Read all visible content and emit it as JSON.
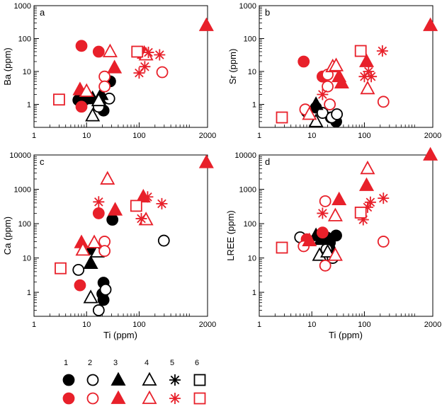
{
  "colors": {
    "black": "#000000",
    "red": "#e8202a"
  },
  "axes": {
    "x_ticks": [
      "1",
      "10",
      "100",
      "2000"
    ],
    "x_label": "Ti (ppm)"
  },
  "legend": {
    "numbers": [
      "1",
      "2",
      "3",
      "4",
      "5",
      "6"
    ],
    "entries": [
      {
        "n": "1",
        "shape": "circle",
        "fill": true
      },
      {
        "n": "2",
        "shape": "circle",
        "fill": false
      },
      {
        "n": "3",
        "shape": "triangle",
        "fill": true
      },
      {
        "n": "4",
        "shape": "triangle",
        "fill": false
      },
      {
        "n": "5",
        "shape": "star",
        "fill": false
      },
      {
        "n": "6",
        "shape": "square",
        "fill": false
      }
    ]
  },
  "chart_data": [
    {
      "panel": "a",
      "type": "scatter",
      "xscale": "log",
      "yscale": "log",
      "xlim": [
        1,
        2000
      ],
      "ylim": [
        0.2,
        1000
      ],
      "xlabel": "",
      "ylabel": "Ba (ppm)",
      "y_ticks": [
        "1",
        "10",
        "100",
        "1000"
      ],
      "points": [
        {
          "x": 7,
          "y": 1.35,
          "s": "circle",
          "f": 1,
          "c": "black"
        },
        {
          "x": 9,
          "y": 1.35,
          "s": "circle",
          "f": 1,
          "c": "black"
        },
        {
          "x": 18,
          "y": 1.0,
          "s": "circle",
          "f": 1,
          "c": "black"
        },
        {
          "x": 21,
          "y": 0.65,
          "s": "circle",
          "f": 1,
          "c": "black"
        },
        {
          "x": 28,
          "y": 5.0,
          "s": "circle",
          "f": 1,
          "c": "black"
        },
        {
          "x": 27,
          "y": 1.5,
          "s": "circle",
          "f": 0,
          "c": "black"
        },
        {
          "x": 17,
          "y": 0.85,
          "s": "circle",
          "f": 0,
          "c": "black"
        },
        {
          "x": 13,
          "y": 1.5,
          "s": "triangle",
          "f": 1,
          "c": "black"
        },
        {
          "x": 19,
          "y": 2.0,
          "s": "triangle",
          "f": 1,
          "c": "black"
        },
        {
          "x": 13,
          "y": 0.45,
          "s": "triangle",
          "f": 0,
          "c": "black"
        },
        {
          "x": 17,
          "y": 1.3,
          "s": "triangle",
          "f": 0,
          "c": "black"
        },
        {
          "x": 8,
          "y": 60,
          "s": "circle",
          "f": 1,
          "c": "red"
        },
        {
          "x": 17,
          "y": 40,
          "s": "circle",
          "f": 1,
          "c": "red"
        },
        {
          "x": 8,
          "y": 0.85,
          "s": "circle",
          "f": 1,
          "c": "red"
        },
        {
          "x": 22,
          "y": 7,
          "s": "circle",
          "f": 0,
          "c": "red"
        },
        {
          "x": 22,
          "y": 3.5,
          "s": "circle",
          "f": 0,
          "c": "red"
        },
        {
          "x": 275,
          "y": 9.5,
          "s": "circle",
          "f": 0,
          "c": "red"
        },
        {
          "x": 7.5,
          "y": 2.8,
          "s": "triangle",
          "f": 1,
          "c": "red"
        },
        {
          "x": 34,
          "y": 13,
          "s": "triangle",
          "f": 1,
          "c": "red"
        },
        {
          "x": 125,
          "y": 36,
          "s": "triangle",
          "f": 1,
          "c": "red"
        },
        {
          "x": 1900,
          "y": 250,
          "s": "triangle",
          "f": 1,
          "c": "red"
        },
        {
          "x": 28,
          "y": 40,
          "s": "triangle",
          "f": 0,
          "c": "red"
        },
        {
          "x": 135,
          "y": 32,
          "s": "triangle",
          "f": 0,
          "c": "red"
        },
        {
          "x": 10,
          "y": 2.5,
          "s": "triangle",
          "f": 0,
          "c": "red"
        },
        {
          "x": 150,
          "y": 38,
          "s": "star",
          "f": 0,
          "c": "red"
        },
        {
          "x": 245,
          "y": 32,
          "s": "star",
          "f": 0,
          "c": "red"
        },
        {
          "x": 100,
          "y": 9,
          "s": "star",
          "f": 0,
          "c": "red"
        },
        {
          "x": 128,
          "y": 14,
          "s": "star",
          "f": 0,
          "c": "red"
        },
        {
          "x": 3,
          "y": 1.4,
          "s": "square",
          "f": 0,
          "c": "red"
        },
        {
          "x": 92,
          "y": 40,
          "s": "square",
          "f": 0,
          "c": "red"
        }
      ]
    },
    {
      "panel": "b",
      "type": "scatter",
      "xscale": "log",
      "yscale": "log",
      "xlim": [
        1,
        2000
      ],
      "ylim": [
        0.2,
        1000
      ],
      "xlabel": "",
      "ylabel": "Sr (ppm)",
      "y_ticks": [
        "1",
        "10",
        "100",
        "1000"
      ],
      "points": [
        {
          "x": 12,
          "y": 0.8,
          "s": "circle",
          "f": 1,
          "c": "black"
        },
        {
          "x": 23,
          "y": 0.4,
          "s": "circle",
          "f": 1,
          "c": "black"
        },
        {
          "x": 29,
          "y": 0.3,
          "s": "circle",
          "f": 1,
          "c": "black"
        },
        {
          "x": 8,
          "y": 0.6,
          "s": "circle",
          "f": 0,
          "c": "black"
        },
        {
          "x": 16,
          "y": 0.55,
          "s": "circle",
          "f": 0,
          "c": "black"
        },
        {
          "x": 24,
          "y": 0.4,
          "s": "circle",
          "f": 0,
          "c": "black"
        },
        {
          "x": 30,
          "y": 0.5,
          "s": "circle",
          "f": 0,
          "c": "black"
        },
        {
          "x": 12,
          "y": 1.0,
          "s": "triangle",
          "f": 1,
          "c": "black"
        },
        {
          "x": 12,
          "y": 0.3,
          "s": "triangle",
          "f": 0,
          "c": "black"
        },
        {
          "x": 7,
          "y": 20,
          "s": "circle",
          "f": 1,
          "c": "red"
        },
        {
          "x": 16,
          "y": 7,
          "s": "circle",
          "f": 1,
          "c": "red"
        },
        {
          "x": 7.5,
          "y": 0.7,
          "s": "circle",
          "f": 0,
          "c": "red"
        },
        {
          "x": 20,
          "y": 3.5,
          "s": "circle",
          "f": 0,
          "c": "red"
        },
        {
          "x": 20,
          "y": 8,
          "s": "circle",
          "f": 0,
          "c": "red"
        },
        {
          "x": 22,
          "y": 1.0,
          "s": "circle",
          "f": 0,
          "c": "red"
        },
        {
          "x": 230,
          "y": 1.2,
          "s": "circle",
          "f": 0,
          "c": "red"
        },
        {
          "x": 33,
          "y": 7,
          "s": "triangle",
          "f": 1,
          "c": "red"
        },
        {
          "x": 37,
          "y": 4.5,
          "s": "triangle",
          "f": 1,
          "c": "red"
        },
        {
          "x": 110,
          "y": 20,
          "s": "triangle",
          "f": 1,
          "c": "red"
        },
        {
          "x": 1800,
          "y": 250,
          "s": "triangle",
          "f": 1,
          "c": "red"
        },
        {
          "x": 25,
          "y": 14,
          "s": "triangle",
          "f": 0,
          "c": "red"
        },
        {
          "x": 29,
          "y": 15,
          "s": "triangle",
          "f": 0,
          "c": "red"
        },
        {
          "x": 115,
          "y": 3,
          "s": "triangle",
          "f": 0,
          "c": "red"
        },
        {
          "x": 9,
          "y": 0.5,
          "s": "triangle",
          "f": 0,
          "c": "red"
        },
        {
          "x": 16,
          "y": 2,
          "s": "star",
          "f": 0,
          "c": "red"
        },
        {
          "x": 100,
          "y": 7,
          "s": "star",
          "f": 0,
          "c": "red"
        },
        {
          "x": 120,
          "y": 10,
          "s": "star",
          "f": 0,
          "c": "red"
        },
        {
          "x": 135,
          "y": 7,
          "s": "star",
          "f": 0,
          "c": "red"
        },
        {
          "x": 220,
          "y": 42,
          "s": "star",
          "f": 0,
          "c": "red"
        },
        {
          "x": 2.7,
          "y": 0.4,
          "s": "square",
          "f": 0,
          "c": "red"
        },
        {
          "x": 85,
          "y": 42,
          "s": "square",
          "f": 0,
          "c": "red"
        }
      ]
    },
    {
      "panel": "c",
      "type": "scatter",
      "xscale": "log",
      "yscale": "log",
      "xlim": [
        1,
        2000
      ],
      "ylim": [
        0.2,
        10000
      ],
      "xlabel": "Ti (ppm)",
      "ylabel": "Ca (ppm)",
      "y_ticks": [
        "1",
        "10",
        "100",
        "1000",
        "10000"
      ],
      "points": [
        {
          "x": 31,
          "y": 130,
          "s": "circle",
          "f": 1,
          "c": "black"
        },
        {
          "x": 21,
          "y": 1.9,
          "s": "circle",
          "f": 1,
          "c": "black"
        },
        {
          "x": 20,
          "y": 0.9,
          "s": "circle",
          "f": 1,
          "c": "black"
        },
        {
          "x": 21,
          "y": 0.6,
          "s": "circle",
          "f": 1,
          "c": "black"
        },
        {
          "x": 7,
          "y": 4.5,
          "s": "circle",
          "f": 0,
          "c": "black"
        },
        {
          "x": 23,
          "y": 1.2,
          "s": "circle",
          "f": 0,
          "c": "black"
        },
        {
          "x": 17,
          "y": 0.3,
          "s": "circle",
          "f": 0,
          "c": "black"
        },
        {
          "x": 295,
          "y": 32,
          "s": "circle",
          "f": 0,
          "c": "black"
        },
        {
          "x": 12,
          "y": 18,
          "s": "triangle",
          "f": 1,
          "c": "black"
        },
        {
          "x": 12,
          "y": 7,
          "s": "triangle",
          "f": 1,
          "c": "black"
        },
        {
          "x": 12,
          "y": 0.7,
          "s": "triangle",
          "f": 0,
          "c": "black"
        },
        {
          "x": 16,
          "y": 15,
          "s": "triangle",
          "f": 0,
          "c": "black"
        },
        {
          "x": 17,
          "y": 200,
          "s": "circle",
          "f": 1,
          "c": "red"
        },
        {
          "x": 7.5,
          "y": 1.6,
          "s": "circle",
          "f": 1,
          "c": "red"
        },
        {
          "x": 22,
          "y": 30,
          "s": "circle",
          "f": 0,
          "c": "red"
        },
        {
          "x": 22,
          "y": 16,
          "s": "circle",
          "f": 0,
          "c": "red"
        },
        {
          "x": 8,
          "y": 28,
          "s": "triangle",
          "f": 1,
          "c": "red"
        },
        {
          "x": 35,
          "y": 250,
          "s": "triangle",
          "f": 1,
          "c": "red"
        },
        {
          "x": 120,
          "y": 600,
          "s": "triangle",
          "f": 1,
          "c": "red"
        },
        {
          "x": 1900,
          "y": 6000,
          "s": "triangle",
          "f": 1,
          "c": "red"
        },
        {
          "x": 25,
          "y": 2000,
          "s": "triangle",
          "f": 0,
          "c": "red"
        },
        {
          "x": 135,
          "y": 130,
          "s": "triangle",
          "f": 0,
          "c": "red"
        },
        {
          "x": 8.5,
          "y": 17,
          "s": "triangle",
          "f": 0,
          "c": "red"
        },
        {
          "x": 14,
          "y": 28,
          "s": "triangle",
          "f": 0,
          "c": "red"
        },
        {
          "x": 17,
          "y": 430,
          "s": "star",
          "f": 0,
          "c": "red"
        },
        {
          "x": 110,
          "y": 140,
          "s": "star",
          "f": 0,
          "c": "red"
        },
        {
          "x": 145,
          "y": 600,
          "s": "star",
          "f": 0,
          "c": "red"
        },
        {
          "x": 270,
          "y": 380,
          "s": "star",
          "f": 0,
          "c": "red"
        },
        {
          "x": 3.2,
          "y": 5,
          "s": "square",
          "f": 0,
          "c": "red"
        },
        {
          "x": 88,
          "y": 330,
          "s": "square",
          "f": 0,
          "c": "red"
        }
      ]
    },
    {
      "panel": "d",
      "type": "scatter",
      "xscale": "log",
      "yscale": "log",
      "xlim": [
        1,
        2000
      ],
      "ylim": [
        0.2,
        10000
      ],
      "xlabel": "Ti (ppm)",
      "ylabel": "LREE (ppm)",
      "y_ticks": [
        "1",
        "10",
        "100",
        "1000",
        "10000"
      ],
      "points": [
        {
          "x": 19,
          "y": 40,
          "s": "circle",
          "f": 1,
          "c": "black"
        },
        {
          "x": 22,
          "y": 28,
          "s": "circle",
          "f": 1,
          "c": "black"
        },
        {
          "x": 29,
          "y": 45,
          "s": "circle",
          "f": 1,
          "c": "black"
        },
        {
          "x": 22,
          "y": 18,
          "s": "circle",
          "f": 1,
          "c": "black"
        },
        {
          "x": 6,
          "y": 40,
          "s": "circle",
          "f": 0,
          "c": "black"
        },
        {
          "x": 19,
          "y": 18,
          "s": "circle",
          "f": 0,
          "c": "black"
        },
        {
          "x": 25,
          "y": 10,
          "s": "circle",
          "f": 0,
          "c": "black"
        },
        {
          "x": 12,
          "y": 45,
          "s": "triangle",
          "f": 1,
          "c": "black"
        },
        {
          "x": 15,
          "y": 35,
          "s": "triangle",
          "f": 1,
          "c": "black"
        },
        {
          "x": 14,
          "y": 12,
          "s": "triangle",
          "f": 0,
          "c": "black"
        },
        {
          "x": 20,
          "y": 15,
          "s": "triangle",
          "f": 0,
          "c": "black"
        },
        {
          "x": 16,
          "y": 55,
          "s": "circle",
          "f": 1,
          "c": "red"
        },
        {
          "x": 8,
          "y": 35,
          "s": "circle",
          "f": 1,
          "c": "red"
        },
        {
          "x": 18,
          "y": 450,
          "s": "circle",
          "f": 0,
          "c": "red"
        },
        {
          "x": 7,
          "y": 22,
          "s": "circle",
          "f": 0,
          "c": "red"
        },
        {
          "x": 18,
          "y": 6,
          "s": "circle",
          "f": 0,
          "c": "red"
        },
        {
          "x": 230,
          "y": 30,
          "s": "circle",
          "f": 0,
          "c": "red"
        },
        {
          "x": 9,
          "y": 32,
          "s": "triangle",
          "f": 1,
          "c": "red"
        },
        {
          "x": 33,
          "y": 500,
          "s": "triangle",
          "f": 1,
          "c": "red"
        },
        {
          "x": 110,
          "y": 1300,
          "s": "triangle",
          "f": 1,
          "c": "red"
        },
        {
          "x": 1800,
          "y": 10000,
          "s": "triangle",
          "f": 1,
          "c": "red"
        },
        {
          "x": 115,
          "y": 4000,
          "s": "triangle",
          "f": 0,
          "c": "red"
        },
        {
          "x": 28,
          "y": 170,
          "s": "triangle",
          "f": 0,
          "c": "red"
        },
        {
          "x": 28,
          "y": 12,
          "s": "triangle",
          "f": 0,
          "c": "red"
        },
        {
          "x": 16,
          "y": 200,
          "s": "star",
          "f": 0,
          "c": "red"
        },
        {
          "x": 95,
          "y": 130,
          "s": "star",
          "f": 0,
          "c": "red"
        },
        {
          "x": 115,
          "y": 300,
          "s": "star",
          "f": 0,
          "c": "red"
        },
        {
          "x": 130,
          "y": 420,
          "s": "star",
          "f": 0,
          "c": "red"
        },
        {
          "x": 230,
          "y": 550,
          "s": "star",
          "f": 0,
          "c": "red"
        },
        {
          "x": 2.7,
          "y": 20,
          "s": "square",
          "f": 0,
          "c": "red"
        },
        {
          "x": 85,
          "y": 210,
          "s": "square",
          "f": 0,
          "c": "red"
        }
      ]
    }
  ]
}
